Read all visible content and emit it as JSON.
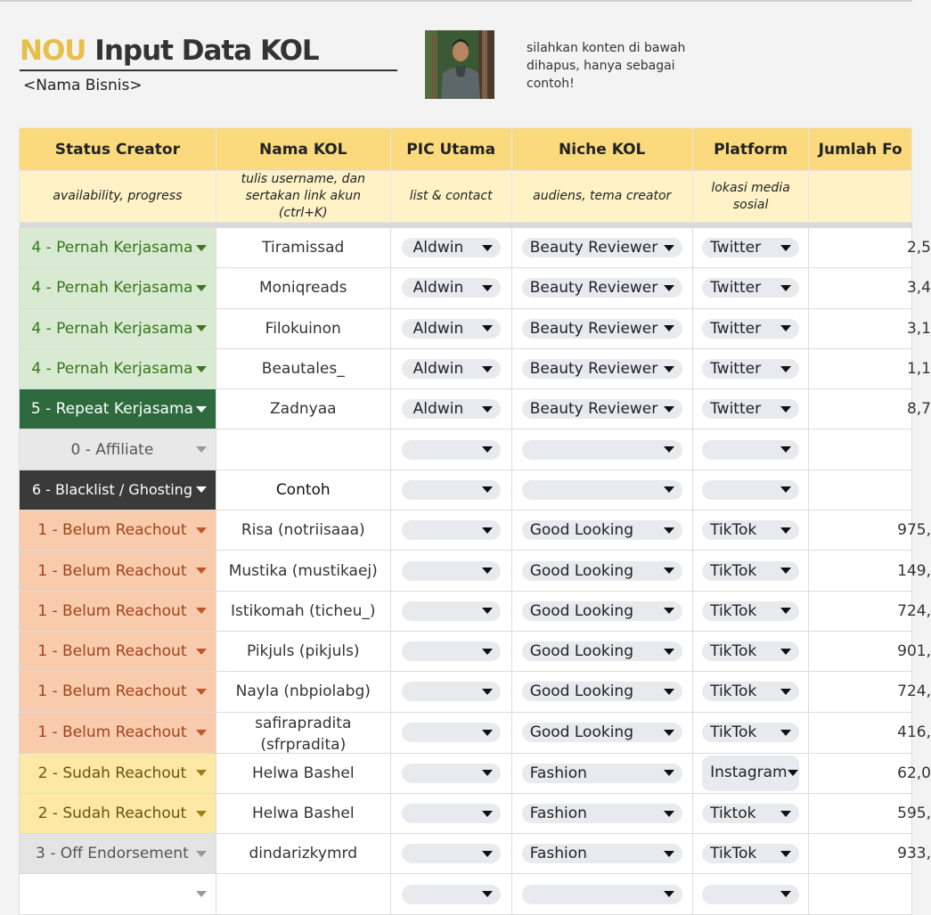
{
  "header": {
    "brand": "NOU",
    "title": "Input Data KOL",
    "subtitle": "<Nama Bisnis>",
    "note": "silahkan konten di bawah dihapus, hanya sebagai contoh!"
  },
  "columns": [
    {
      "label": "Status Creator",
      "hint": "availability, progress"
    },
    {
      "label": "Nama KOL",
      "hint": "tulis username, dan sertakan link akun (ctrl+K)"
    },
    {
      "label": "PIC Utama",
      "hint": "list & contact"
    },
    {
      "label": "Niche KOL",
      "hint": "audiens, tema creator"
    },
    {
      "label": "Platform",
      "hint": "lokasi media sosial"
    },
    {
      "label": "Jumlah Fo",
      "hint": ""
    }
  ],
  "rows": [
    {
      "status": "4 - Pernah Kerjasama",
      "name": "Tiramissad",
      "pic": "Aldwin",
      "niche": "Beauty Reviewer",
      "platform": "Twitter",
      "followers": "2,5"
    },
    {
      "status": "4 - Pernah Kerjasama",
      "name": "Moniqreads",
      "pic": "Aldwin",
      "niche": "Beauty Reviewer",
      "platform": "Twitter",
      "followers": "3,4"
    },
    {
      "status": "4 - Pernah Kerjasama",
      "name": "Filokuinon",
      "pic": "Aldwin",
      "niche": "Beauty Reviewer",
      "platform": "Twitter",
      "followers": "3,1"
    },
    {
      "status": "4 - Pernah Kerjasama",
      "name": "Beautales_",
      "pic": "Aldwin",
      "niche": "Beauty Reviewer",
      "platform": "Twitter",
      "followers": "1,1"
    },
    {
      "status": "5 - Repeat Kerjasama",
      "name": "Zadnyaa",
      "pic": "Aldwin",
      "niche": "Beauty Reviewer",
      "platform": "Twitter",
      "followers": "8,7"
    },
    {
      "status": "0 - Affiliate",
      "name": "",
      "pic": "",
      "niche": "",
      "platform": "",
      "followers": ""
    },
    {
      "status": "6 - Blacklist / Ghosting",
      "name": "Contoh",
      "pic": "",
      "niche": "",
      "platform": "",
      "followers": ""
    },
    {
      "status": "1 - Belum Reachout",
      "name": "Risa (notriisaaa)",
      "pic": "",
      "niche": "Good Looking",
      "platform": "TikTok",
      "followers": "975,"
    },
    {
      "status": "1 - Belum Reachout",
      "name": "Mustika (mustikaej)",
      "pic": "",
      "niche": "Good Looking",
      "platform": "TikTok",
      "followers": "149,"
    },
    {
      "status": "1 - Belum Reachout",
      "name": "Istikomah (ticheu_)",
      "pic": "",
      "niche": "Good Looking",
      "platform": "TikTok",
      "followers": "724,"
    },
    {
      "status": "1 - Belum Reachout",
      "name": "Pikjuls (pikjuls)",
      "pic": "",
      "niche": "Good Looking",
      "platform": "TikTok",
      "followers": "901,"
    },
    {
      "status": "1 - Belum Reachout",
      "name": "Nayla (nbpiolabg)",
      "pic": "",
      "niche": "Good Looking",
      "platform": "TikTok",
      "followers": "724,"
    },
    {
      "status": "1 - Belum Reachout",
      "name": "safirapradita (sfrpradita)",
      "pic": "",
      "niche": "Good Looking",
      "platform": "TikTok",
      "followers": "416,"
    },
    {
      "status": "2 - Sudah Reachout",
      "name": "Helwa Bashel",
      "pic": "",
      "niche": "Fashion",
      "platform": "Instagram",
      "followers": "62,0"
    },
    {
      "status": "2 - Sudah Reachout",
      "name": "Helwa Bashel",
      "pic": "",
      "niche": "Fashion",
      "platform": "Tiktok",
      "followers": "595,"
    },
    {
      "status": "3 - Off Endorsement",
      "name": "dindarizkymrd",
      "pic": "",
      "niche": "Fashion",
      "platform": "TikTok",
      "followers": "933,"
    },
    {
      "status": "",
      "name": "",
      "pic": "",
      "niche": "",
      "platform": "",
      "followers": ""
    }
  ],
  "status_colors": {
    "4 - Pernah Kerjasama": {
      "bg": "#d9ead3",
      "fg": "#38761d",
      "tri": "#38761d"
    },
    "5 - Repeat Kerjasama": {
      "bg": "#2d6a3e",
      "fg": "#ffffff",
      "tri": "#ffffff"
    },
    "0 - Affiliate": {
      "bg": "#e8e8e8",
      "fg": "#555555",
      "tri": "#9a9a9a"
    },
    "6 - Blacklist / Ghosting": {
      "bg": "#3a3a3a",
      "fg": "#ffffff",
      "tri": "#ffffff"
    },
    "1 - Belum Reachout": {
      "bg": "#f8cbad",
      "fg": "#a0441a",
      "tri": "#c0552a"
    },
    "2 - Sudah Reachout": {
      "bg": "#fde8a6",
      "fg": "#6b5410",
      "tri": "#a07d16"
    },
    "3 - Off Endorsement": {
      "bg": "#e4e4e4",
      "fg": "#555555",
      "tri": "#9a9a9a"
    },
    "": {
      "bg": "#ffffff",
      "fg": "#333333",
      "tri": "#9a9a9a"
    }
  },
  "icons": {
    "dropdown": "chevron-down-icon",
    "photo": "profile-photo"
  }
}
